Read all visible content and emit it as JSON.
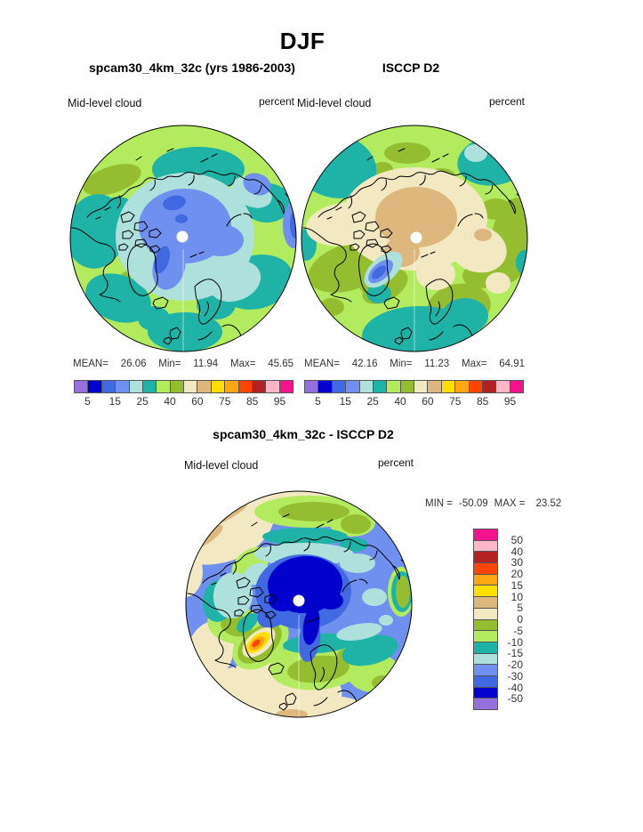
{
  "title": "DJF",
  "palette": [
    "#9370DB",
    "#0000CC",
    "#4169E1",
    "#7090F0",
    "#AEE0DC",
    "#1FB2A6",
    "#B2EC5E",
    "#94BE30",
    "#F2E8C2",
    "#DDB77E",
    "#FFDF00",
    "#FFA613",
    "#FF4500",
    "#B22222",
    "#FFB6C6",
    "#F5128D"
  ],
  "top_row": {
    "model": {
      "title": "spcam30_4km_32c (yrs 1986-2003)",
      "field": "Mid-level cloud",
      "units": "percent",
      "stats": {
        "mean_label": "MEAN=",
        "mean": "26.06",
        "min_label": "Min=",
        "min": "11.94",
        "max_label": "Max=",
        "max": "45.65"
      }
    },
    "obs": {
      "title": "ISCCP D2",
      "field": "Mid-level cloud",
      "units": "percent",
      "stats": {
        "mean_label": "MEAN=",
        "mean": "42.16",
        "min_label": "Min=",
        "min": "11.23",
        "max_label": "Max=",
        "max": "64.91"
      }
    },
    "colorbar_ticks": [
      "5",
      "15",
      "25",
      "40",
      "60",
      "75",
      "85",
      "95"
    ]
  },
  "diff_row": {
    "title": "spcam30_4km_32c - ISCCP D2",
    "field": "Mid-level cloud",
    "units": "percent",
    "stats": {
      "min_label": "MIN =",
      "min": "-50.09",
      "max_label": "MAX =",
      "max": "23.52"
    },
    "colorbar_ticks": [
      "50",
      "40",
      "30",
      "20",
      "15",
      "10",
      "5",
      "0",
      "-5",
      "-10",
      "-15",
      "-20",
      "-30",
      "-40",
      "-50"
    ]
  },
  "chart_data": [
    {
      "type": "heatmap",
      "title": "spcam30_4km_32c (yrs 1986-2003)",
      "season": "DJF",
      "variable": "Mid-level cloud",
      "units": "percent",
      "projection": "north polar stereographic",
      "stats": {
        "mean": 26.06,
        "min": 11.94,
        "max": 45.65
      },
      "contour_levels": [
        5,
        10,
        15,
        20,
        25,
        30,
        40,
        50,
        60,
        70,
        75,
        80,
        85,
        90,
        95
      ],
      "legend_position": "bottom",
      "description": "Arctic polar map: blue low-value center over Arctic Ocean (15-25%), cyan/teal mid ring, green periphery (25-40%)"
    },
    {
      "type": "heatmap",
      "title": "ISCCP D2",
      "season": "DJF",
      "variable": "Mid-level cloud",
      "units": "percent",
      "projection": "north polar stereographic",
      "stats": {
        "mean": 42.16,
        "min": 11.23,
        "max": 64.91
      },
      "contour_levels": [
        5,
        10,
        15,
        20,
        25,
        30,
        40,
        50,
        60,
        70,
        75,
        80,
        85,
        90,
        95
      ],
      "legend_position": "bottom",
      "description": "Arctic polar map: beige/tan high values (50-70%) over central Arctic, green periphery, blue minimum spot over Greenland"
    },
    {
      "type": "heatmap",
      "title": "spcam30_4km_32c - ISCCP D2",
      "season": "DJF",
      "variable": "Mid-level cloud",
      "units": "percent",
      "projection": "north polar stereographic",
      "stats": {
        "min": -50.09,
        "max": 23.52
      },
      "contour_levels": [
        -50,
        -40,
        -30,
        -20,
        -15,
        -10,
        -5,
        0,
        5,
        10,
        15,
        20,
        30,
        40,
        50
      ],
      "legend_position": "right",
      "description": "Difference map: strong negative bias (dark blue, -40 to -50) over central Arctic, positive orange/yellow anomaly (+10 to +25) over Greenland, beige near-zero rim"
    }
  ]
}
